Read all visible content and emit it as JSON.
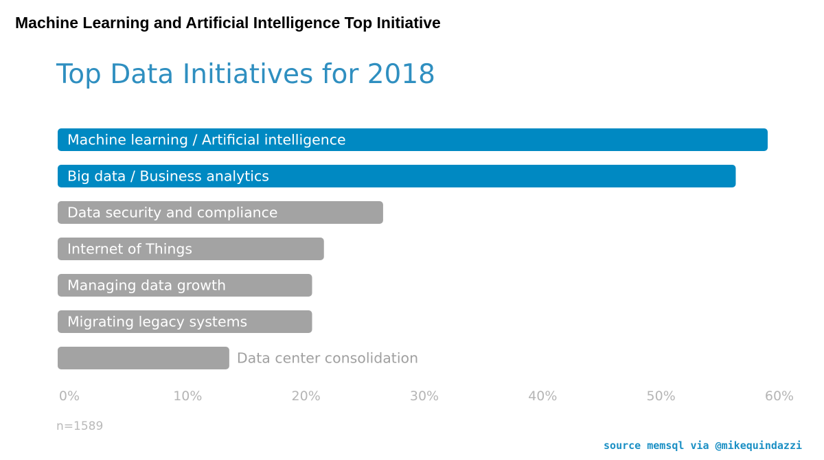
{
  "header": {
    "title": "Machine Learning and Artificial Intelligence Top Initiative"
  },
  "footer": {
    "sample_size": "n=1589",
    "source": "source memsql via @mikequindazzi"
  },
  "colors": {
    "highlight": "#0089c2",
    "muted": "#a3a3a3",
    "title": "#2f8fc0",
    "tick": "#b5b5b5",
    "label_inside": "#ffffff",
    "label_outside": "#a0a0a0",
    "source": "#1a8fc4"
  },
  "chart_data": {
    "type": "bar",
    "orientation": "horizontal",
    "title": "Top Data Initiatives for 2018",
    "categories": [
      "Machine learning / Artificial intelligence",
      "Big data / Business analytics",
      "Data security and compliance",
      "Internet of Things",
      "Managing data growth",
      "Migrating legacy systems",
      "Data center consolidation"
    ],
    "values": [
      60,
      57.3,
      27.5,
      22.5,
      21.5,
      21.5,
      14.5
    ],
    "highlighted": [
      true,
      true,
      false,
      false,
      false,
      false,
      false
    ],
    "unit": "%",
    "xlim": [
      0,
      60
    ],
    "xticks": [
      "0%",
      "10%",
      "20%",
      "30%",
      "40%",
      "50%",
      "60%"
    ],
    "grid": false,
    "legend": "none"
  }
}
